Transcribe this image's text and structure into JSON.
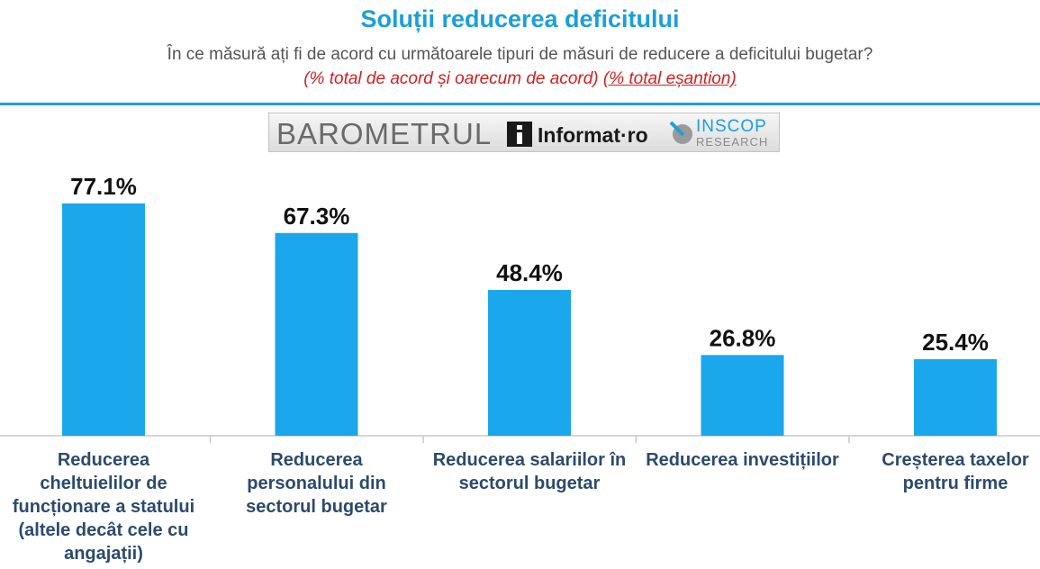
{
  "header": {
    "title": "Soluții reducerea deficitului",
    "subtitle": "În ce măsură ați fi de acord cu următoarele tipuri de măsuri de reducere a deficitului bugetar?",
    "note_part1": "(% total de acord și oarecum de acord)",
    "note_part2": "(% total eșantion)"
  },
  "logo": {
    "barometrul": "BAROMETRUL",
    "informat": "Informat·ro",
    "inscop": "INSCOP",
    "research": "RESEARCH"
  },
  "colors": {
    "bar": "#1aa7ec",
    "title": "#1a9fdb",
    "note": "#d11f1f",
    "category_text": "#2b4a6e"
  },
  "chart_data": {
    "type": "bar",
    "title": "Soluții reducerea deficitului",
    "categories": [
      "Reducerea cheltuielilor de funcționare a statului (altele decât cele cu angajații)",
      "Reducerea personalului din sectorul bugetar",
      "Reducerea salariilor în sectorul bugetar",
      "Reducerea investițiilor",
      "Creșterea taxelor pentru firme"
    ],
    "values": [
      77.1,
      67.3,
      48.4,
      26.8,
      25.4
    ],
    "value_labels": [
      "77.1%",
      "67.3%",
      "48.4%",
      "26.8%",
      "25.4%"
    ],
    "unit": "%",
    "ylim": [
      0,
      100
    ],
    "grid": false,
    "legend": "none"
  }
}
